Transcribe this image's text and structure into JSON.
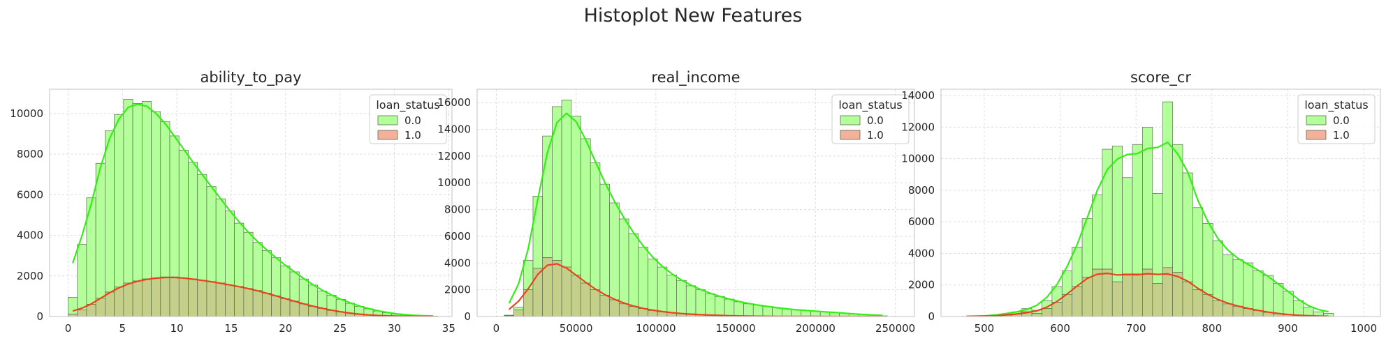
{
  "figure": {
    "title": "Histoplot New Features"
  },
  "colors": {
    "class0_fill": "#b3ff99",
    "class1_fill": "#f4b09a",
    "overlap_fill": "#c4d08a",
    "class0_line": "#33ee14",
    "class1_line": "#e8441c",
    "bar_edge": "#5b6b50",
    "grid": "#dcdcdc",
    "frame": "#cccccc"
  },
  "chart_data": [
    {
      "type": "bar",
      "title": "ability_to_pay",
      "xlabel": "",
      "ylabel": "",
      "xlim": [
        -1.7,
        35.3
      ],
      "ylim": [
        0,
        11200
      ],
      "xticks": [
        0,
        5,
        10,
        15,
        20,
        25,
        30,
        35
      ],
      "yticks": [
        0,
        2000,
        4000,
        6000,
        8000,
        10000
      ],
      "grid": true,
      "legend": {
        "title": "loan_status",
        "position": "top-right",
        "entries": [
          "0.0",
          "1.0"
        ]
      },
      "bin_start": 0,
      "bin_width": 0.85,
      "series": [
        {
          "name": "0.0",
          "values": [
            950,
            3550,
            5850,
            7550,
            9150,
            9950,
            10700,
            10500,
            10600,
            10100,
            9600,
            8900,
            8200,
            7600,
            7000,
            6400,
            5800,
            5200,
            4600,
            4150,
            3650,
            3250,
            2900,
            2500,
            2200,
            1850,
            1550,
            1250,
            1050,
            850,
            650,
            500,
            380,
            270,
            190,
            120,
            80,
            50,
            30,
            20
          ]
        },
        {
          "name": "1.0",
          "values": [
            120,
            320,
            600,
            900,
            1200,
            1450,
            1650,
            1750,
            1850,
            1900,
            1950,
            1950,
            1900,
            1850,
            1780,
            1720,
            1650,
            1550,
            1480,
            1380,
            1280,
            1150,
            1020,
            880,
            750,
            620,
            500,
            400,
            300,
            220,
            160,
            110,
            70,
            45,
            30,
            20,
            12,
            8,
            5,
            3
          ]
        }
      ]
    },
    {
      "type": "bar",
      "title": "real_income",
      "xlabel": "",
      "ylabel": "",
      "xlim": [
        -12000,
        262000
      ],
      "ylim": [
        0,
        17000
      ],
      "xticks": [
        0,
        50000,
        100000,
        150000,
        200000,
        250000
      ],
      "yticks": [
        0,
        2000,
        4000,
        6000,
        8000,
        10000,
        12000,
        14000,
        16000
      ],
      "grid": true,
      "legend": {
        "title": "loan_status",
        "position": "top-right",
        "entries": [
          "0.0",
          "1.0"
        ]
      },
      "bin_start": 5000,
      "bin_width": 6000,
      "series": [
        {
          "name": "0.0",
          "values": [
            100,
            700,
            4200,
            9000,
            13500,
            15700,
            16200,
            15000,
            13300,
            11500,
            9900,
            8500,
            7300,
            6200,
            5200,
            4300,
            3700,
            3100,
            2700,
            2300,
            2000,
            1700,
            1500,
            1300,
            1100,
            950,
            850,
            750,
            650,
            560,
            500,
            450,
            400,
            350,
            300,
            250,
            200,
            150,
            100,
            50
          ]
        },
        {
          "name": "1.0",
          "values": [
            60,
            500,
            2000,
            3600,
            4400,
            4200,
            3700,
            3100,
            2500,
            2000,
            1600,
            1250,
            950,
            750,
            600,
            450,
            350,
            280,
            220,
            170,
            130,
            100,
            80,
            60,
            40,
            30,
            20,
            15,
            10,
            8,
            5,
            4,
            3,
            2,
            1,
            1,
            0,
            0,
            0,
            0
          ]
        }
      ]
    },
    {
      "type": "bar",
      "title": "score_cr",
      "xlabel": "",
      "ylabel": "",
      "xlim": [
        443,
        1022
      ],
      "ylim": [
        0,
        14400
      ],
      "xticks": [
        500,
        600,
        700,
        800,
        900,
        1000
      ],
      "yticks": [
        0,
        2000,
        4000,
        6000,
        8000,
        10000,
        12000,
        14000
      ],
      "grid": true,
      "legend": {
        "title": "loan_status",
        "position": "top-right",
        "entries": [
          "0.0",
          "1.0"
        ]
      },
      "bin_start": 470,
      "bin_width": 13.25,
      "series": [
        {
          "name": "0.0",
          "values": [
            10,
            20,
            40,
            80,
            150,
            300,
            500,
            400,
            1000,
            1900,
            2900,
            4400,
            6200,
            7700,
            10600,
            10800,
            8800,
            10900,
            12000,
            7800,
            13600,
            10900,
            9100,
            6900,
            5900,
            4800,
            3900,
            3600,
            3400,
            2900,
            2600,
            2100,
            1600,
            1000,
            600,
            300,
            200
          ]
        },
        {
          "name": "1.0",
          "values": [
            5,
            10,
            20,
            40,
            80,
            150,
            300,
            200,
            500,
            900,
            1400,
            1900,
            2500,
            3000,
            3000,
            2200,
            2700,
            2700,
            3000,
            2100,
            3100,
            2800,
            2200,
            1700,
            1400,
            1000,
            800,
            650,
            500,
            380,
            260,
            180,
            110,
            70,
            40,
            20,
            10
          ]
        }
      ]
    }
  ]
}
